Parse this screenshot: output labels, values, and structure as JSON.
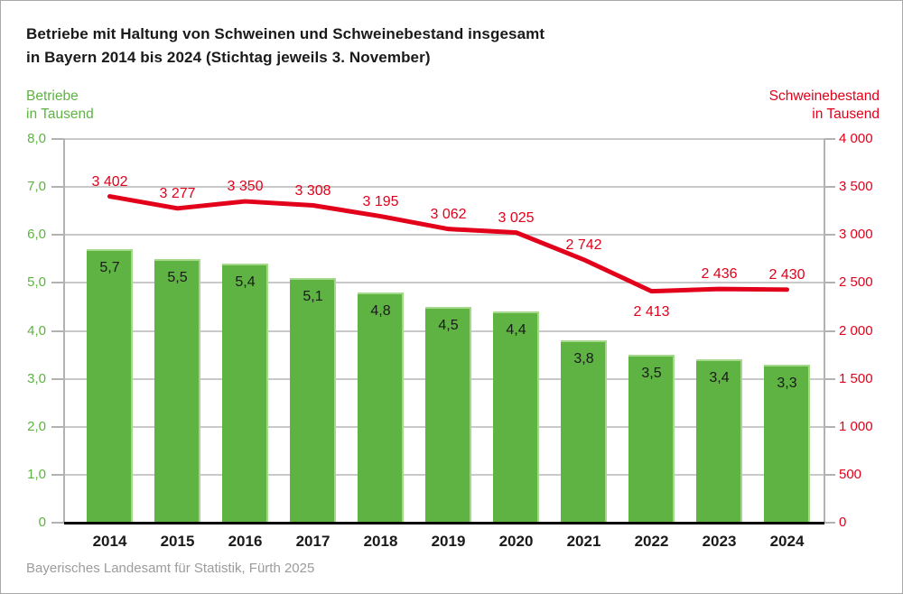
{
  "header": {
    "title_line1": "Betriebe mit Haltung von Schweinen und Schweinebestand insgesamt",
    "title_line2": "in Bayern 2014 bis 2024 (Stichtag jeweils 3. November)"
  },
  "left_axis": {
    "label_line1": "Betriebe",
    "label_line2": "in Tausend",
    "color": "#5eb343",
    "tick_labels": [
      "8,0",
      "7,0",
      "6,0",
      "5,0",
      "4,0",
      "3,0",
      "2,0",
      "1,0",
      "0"
    ]
  },
  "right_axis": {
    "label_line1": "Schweinebestand",
    "label_line2": "in Tausend",
    "color": "#e2001a",
    "tick_labels": [
      "4 000",
      "3 500",
      "3 000",
      "2 500",
      "2 000",
      "1 500",
      "1 000",
      "500",
      "0"
    ]
  },
  "chart_data": {
    "type": "bar+line",
    "title": "Betriebe mit Haltung von Schweinen und Schweinebestand insgesamt in Bayern 2014 bis 2024 (Stichtag jeweils 3. November)",
    "categories": [
      "2014",
      "2015",
      "2016",
      "2017",
      "2018",
      "2019",
      "2020",
      "2021",
      "2022",
      "2023",
      "2024"
    ],
    "series": [
      {
        "name": "Betriebe in Tausend",
        "kind": "bar",
        "axis": "left",
        "color": "#5eb343",
        "values": [
          5.7,
          5.5,
          5.4,
          5.1,
          4.8,
          4.5,
          4.4,
          3.8,
          3.5,
          3.4,
          3.3
        ],
        "value_labels": [
          "5,7",
          "5,5",
          "5,4",
          "5,1",
          "4,8",
          "4,5",
          "4,4",
          "3,8",
          "3,5",
          "3,4",
          "3,3"
        ]
      },
      {
        "name": "Schweinebestand in Tausend",
        "kind": "line",
        "axis": "right",
        "color": "#e2001a",
        "values": [
          3402,
          3277,
          3350,
          3308,
          3195,
          3062,
          3025,
          2742,
          2413,
          2436,
          2430
        ],
        "value_labels": [
          "3 402",
          "3 277",
          "3 350",
          "3 308",
          "3 195",
          "3 062",
          "3 025",
          "2 742",
          "2 413",
          "2 436",
          "2 430"
        ],
        "labels_below_indices": [
          8
        ]
      }
    ],
    "left_axis_range": [
      0,
      8
    ],
    "right_axis_range": [
      0,
      4000
    ],
    "grid": true,
    "legend_position": "none"
  },
  "footer": {
    "source": "Bayerisches Landesamt für Statistik, Fürth 2025"
  }
}
